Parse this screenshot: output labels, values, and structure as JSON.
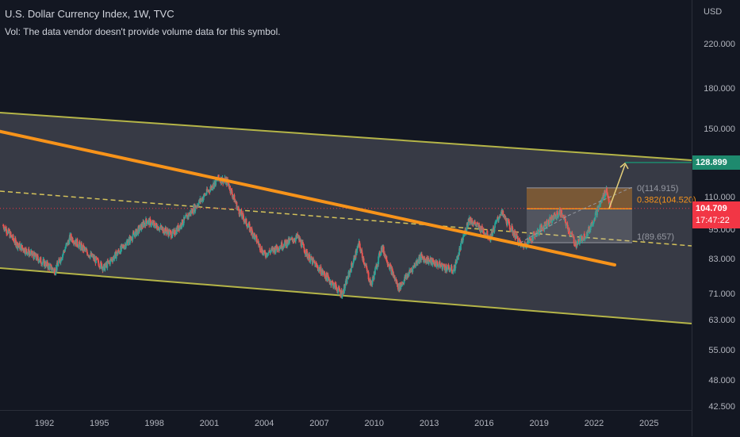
{
  "header": {
    "title": "U.S. Dollar Currency Index, 1W, TVC",
    "volume_note": "Vol: The data vendor doesn't provide volume data for this symbol."
  },
  "price_axis": {
    "unit": "USD",
    "ticks": [
      "220.000",
      "180.000",
      "150.000",
      "128.899",
      "110.000",
      "95.000",
      "83.000",
      "71.000",
      "63.000",
      "55.000",
      "48.000",
      "42.500"
    ],
    "last_price": "104.709",
    "countdown": "17:47:22",
    "target_price": "128.899"
  },
  "time_axis": {
    "labels": [
      "1992",
      "1995",
      "1998",
      "2001",
      "2004",
      "2007",
      "2010",
      "2013",
      "2016",
      "2019",
      "2022",
      "2025"
    ]
  },
  "fib": {
    "level_0": "0(114.915)",
    "level_0382": "0.382(104.520)",
    "level_1": "1(89.657)"
  },
  "colors": {
    "background": "#131722",
    "candle_up": "#26a69a",
    "candle_down": "#ef5350",
    "trendline": "#f7931a",
    "channel": "#b5b548",
    "last_price": "#f23645",
    "target": "#1e8a6e"
  },
  "chart_data": {
    "type": "candlestick",
    "title": "U.S. Dollar Currency Index, 1W, TVC",
    "scale": "log",
    "ylim": [
      42.5,
      260
    ],
    "xlim": [
      "1989-10",
      "2027"
    ],
    "key_points": [
      {
        "x": "1989-10",
        "y": 97
      },
      {
        "x": "1990-07",
        "y": 89
      },
      {
        "x": "1992-08",
        "y": 79
      },
      {
        "x": "1993-06",
        "y": 92
      },
      {
        "x": "1995-04",
        "y": 80
      },
      {
        "x": "1997-08",
        "y": 99
      },
      {
        "x": "1999-01",
        "y": 93
      },
      {
        "x": "2001-07",
        "y": 120
      },
      {
        "x": "2002-01",
        "y": 118
      },
      {
        "x": "2002-08",
        "y": 104
      },
      {
        "x": "2003-06",
        "y": 93
      },
      {
        "x": "2004-01",
        "y": 85
      },
      {
        "x": "2005-11",
        "y": 92
      },
      {
        "x": "2006-06",
        "y": 84
      },
      {
        "x": "2008-04",
        "y": 71
      },
      {
        "x": "2009-03",
        "y": 89
      },
      {
        "x": "2009-11",
        "y": 74
      },
      {
        "x": "2010-06",
        "y": 88
      },
      {
        "x": "2011-05",
        "y": 73
      },
      {
        "x": "2012-07",
        "y": 84
      },
      {
        "x": "2014-05",
        "y": 79
      },
      {
        "x": "2015-03",
        "y": 100
      },
      {
        "x": "2016-05",
        "y": 92
      },
      {
        "x": "2016-12",
        "y": 103
      },
      {
        "x": "2018-02",
        "y": 88
      },
      {
        "x": "2019-06",
        "y": 98
      },
      {
        "x": "2020-03",
        "y": 103
      },
      {
        "x": "2021-01",
        "y": 89
      },
      {
        "x": "2021-09",
        "y": 94
      },
      {
        "x": "2022-09",
        "y": 114
      },
      {
        "x": "2022-12",
        "y": 104.7
      }
    ],
    "last_value": 104.709,
    "projection": {
      "x": [
        "2022-12",
        "2024-06"
      ],
      "y": [
        104.7,
        128.899
      ]
    },
    "fib_retracement": [
      {
        "level": 0,
        "value": 114.915
      },
      {
        "level": 0.382,
        "value": 104.52
      },
      {
        "level": 1,
        "value": 89.657
      }
    ]
  }
}
